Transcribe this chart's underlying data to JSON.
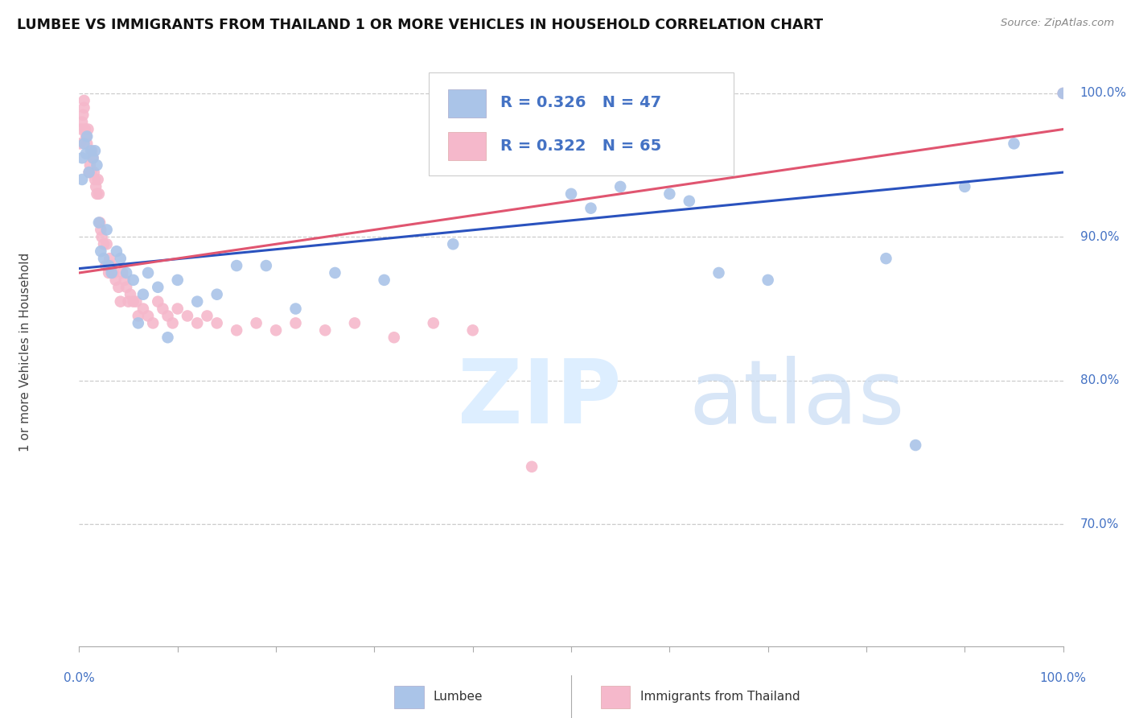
{
  "title": "LUMBEE VS IMMIGRANTS FROM THAILAND 1 OR MORE VEHICLES IN HOUSEHOLD CORRELATION CHART",
  "source": "Source: ZipAtlas.com",
  "ylabel": "1 or more Vehicles in Household",
  "xlim": [
    0.0,
    1.0
  ],
  "ylim": [
    0.615,
    1.025
  ],
  "yticks": [
    0.7,
    0.8,
    0.9,
    1.0
  ],
  "ytick_labels": [
    "70.0%",
    "80.0%",
    "90.0%",
    "100.0%"
  ],
  "legend_blue_label": "Lumbee",
  "legend_pink_label": "Immigrants from Thailand",
  "R_blue": 0.326,
  "N_blue": 47,
  "R_pink": 0.322,
  "N_pink": 65,
  "blue_color": "#aac4e8",
  "pink_color": "#f5b8cb",
  "blue_line_color": "#2a52be",
  "pink_line_color": "#e05570",
  "blue_x": [
    0.003,
    0.003,
    0.005,
    0.007,
    0.008,
    0.01,
    0.012,
    0.014,
    0.016,
    0.018,
    0.02,
    0.022,
    0.025,
    0.028,
    0.03,
    0.033,
    0.038,
    0.042,
    0.048,
    0.055,
    0.06,
    0.065,
    0.07,
    0.08,
    0.09,
    0.1,
    0.12,
    0.14,
    0.16,
    0.19,
    0.22,
    0.26,
    0.31,
    0.38,
    0.44,
    0.5,
    0.52,
    0.55,
    0.6,
    0.62,
    0.65,
    0.7,
    0.82,
    0.85,
    0.9,
    0.95,
    1.0
  ],
  "blue_y": [
    0.955,
    0.94,
    0.965,
    0.958,
    0.97,
    0.945,
    0.96,
    0.955,
    0.96,
    0.95,
    0.91,
    0.89,
    0.885,
    0.905,
    0.88,
    0.875,
    0.89,
    0.885,
    0.875,
    0.87,
    0.84,
    0.86,
    0.875,
    0.865,
    0.83,
    0.87,
    0.855,
    0.86,
    0.88,
    0.88,
    0.85,
    0.875,
    0.87,
    0.895,
    0.965,
    0.93,
    0.92,
    0.935,
    0.93,
    0.925,
    0.875,
    0.87,
    0.885,
    0.755,
    0.935,
    0.965,
    1.0
  ],
  "pink_x": [
    0.001,
    0.002,
    0.003,
    0.004,
    0.005,
    0.005,
    0.006,
    0.007,
    0.008,
    0.009,
    0.01,
    0.011,
    0.012,
    0.013,
    0.014,
    0.015,
    0.016,
    0.017,
    0.018,
    0.019,
    0.02,
    0.021,
    0.022,
    0.023,
    0.025,
    0.027,
    0.028,
    0.03,
    0.031,
    0.033,
    0.035,
    0.037,
    0.04,
    0.042,
    0.044,
    0.046,
    0.048,
    0.05,
    0.052,
    0.055,
    0.058,
    0.06,
    0.065,
    0.07,
    0.075,
    0.08,
    0.085,
    0.09,
    0.095,
    0.1,
    0.11,
    0.12,
    0.13,
    0.14,
    0.16,
    0.18,
    0.2,
    0.22,
    0.25,
    0.28,
    0.32,
    0.36,
    0.4,
    0.46,
    1.0
  ],
  "pink_y": [
    0.965,
    0.975,
    0.98,
    0.985,
    0.99,
    0.995,
    0.975,
    0.97,
    0.965,
    0.975,
    0.945,
    0.95,
    0.945,
    0.96,
    0.955,
    0.945,
    0.94,
    0.935,
    0.93,
    0.94,
    0.93,
    0.91,
    0.905,
    0.9,
    0.895,
    0.88,
    0.895,
    0.875,
    0.885,
    0.88,
    0.875,
    0.87,
    0.865,
    0.855,
    0.875,
    0.87,
    0.865,
    0.855,
    0.86,
    0.855,
    0.855,
    0.845,
    0.85,
    0.845,
    0.84,
    0.855,
    0.85,
    0.845,
    0.84,
    0.85,
    0.845,
    0.84,
    0.845,
    0.84,
    0.835,
    0.84,
    0.835,
    0.84,
    0.835,
    0.84,
    0.83,
    0.84,
    0.835,
    0.74,
    1.0
  ],
  "blue_trend_x": [
    0.0,
    1.0
  ],
  "blue_trend_y": [
    0.878,
    0.945
  ],
  "pink_trend_x": [
    0.0,
    1.0
  ],
  "pink_trend_y": [
    0.875,
    0.975
  ]
}
